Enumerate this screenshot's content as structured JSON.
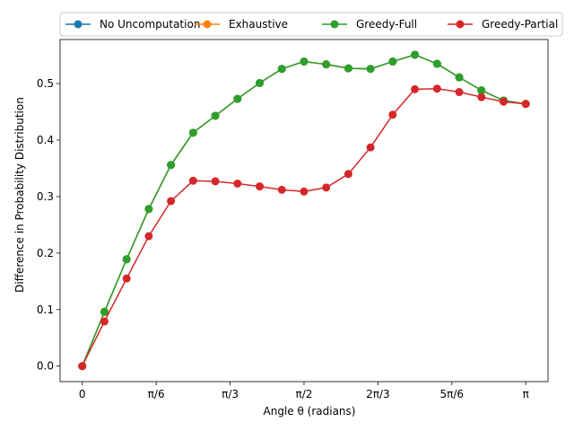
{
  "chart_data": {
    "type": "line",
    "title": "",
    "xlabel": "Angle θ (radians)",
    "ylabel": "Difference in Probability Distribution",
    "xlim": [
      -0.157,
      3.299
    ],
    "ylim": [
      -0.0275,
      0.578
    ],
    "x_ticks": [
      {
        "value": 0,
        "label": "0"
      },
      {
        "value": 0.5236,
        "label": "π/6"
      },
      {
        "value": 1.0472,
        "label": "π/3"
      },
      {
        "value": 1.5708,
        "label": "π/2"
      },
      {
        "value": 2.0944,
        "label": "2π/3"
      },
      {
        "value": 2.618,
        "label": "5π/6"
      },
      {
        "value": 3.1416,
        "label": "π"
      }
    ],
    "y_ticks": [
      {
        "value": 0.0,
        "label": "0.0"
      },
      {
        "value": 0.1,
        "label": "0.1"
      },
      {
        "value": 0.2,
        "label": "0.2"
      },
      {
        "value": 0.3,
        "label": "0.3"
      },
      {
        "value": 0.4,
        "label": "0.4"
      },
      {
        "value": 0.5,
        "label": "0.5"
      }
    ],
    "grid": false,
    "legend_position": "top",
    "x": [
      0,
      0.1571,
      0.3142,
      0.4712,
      0.6283,
      0.7854,
      0.9425,
      1.0996,
      1.2566,
      1.4137,
      1.5708,
      1.7279,
      1.885,
      2.042,
      2.1991,
      2.3562,
      2.5133,
      2.6704,
      2.8274,
      2.9845,
      3.1416
    ],
    "series": [
      {
        "name": "No Uncomputation",
        "color": "#1f77b4",
        "values": [
          0.0,
          0.096,
          0.189,
          0.278,
          0.356,
          0.413,
          0.443,
          0.473,
          0.501,
          0.526,
          0.539,
          0.534,
          0.527,
          0.526,
          0.539,
          0.551,
          0.535,
          0.511,
          0.488,
          0.47,
          0.464
        ]
      },
      {
        "name": "Exhaustive",
        "color": "#ff7f0e",
        "values": [
          0.0,
          0.096,
          0.189,
          0.278,
          0.356,
          0.413,
          0.443,
          0.473,
          0.501,
          0.526,
          0.539,
          0.534,
          0.527,
          0.526,
          0.539,
          0.551,
          0.535,
          0.511,
          0.488,
          0.47,
          0.464
        ]
      },
      {
        "name": "Greedy-Full",
        "color": "#2ca02c",
        "values": [
          0.0,
          0.096,
          0.189,
          0.278,
          0.356,
          0.413,
          0.443,
          0.473,
          0.501,
          0.526,
          0.539,
          0.534,
          0.527,
          0.526,
          0.539,
          0.551,
          0.535,
          0.511,
          0.488,
          0.47,
          0.464
        ]
      },
      {
        "name": "Greedy-Partial",
        "color": "#d62728",
        "values": [
          0.0,
          0.079,
          0.155,
          0.23,
          0.292,
          0.328,
          0.327,
          0.323,
          0.318,
          0.312,
          0.309,
          0.316,
          0.34,
          0.387,
          0.445,
          0.49,
          0.491,
          0.485,
          0.476,
          0.468,
          0.464
        ]
      }
    ]
  }
}
